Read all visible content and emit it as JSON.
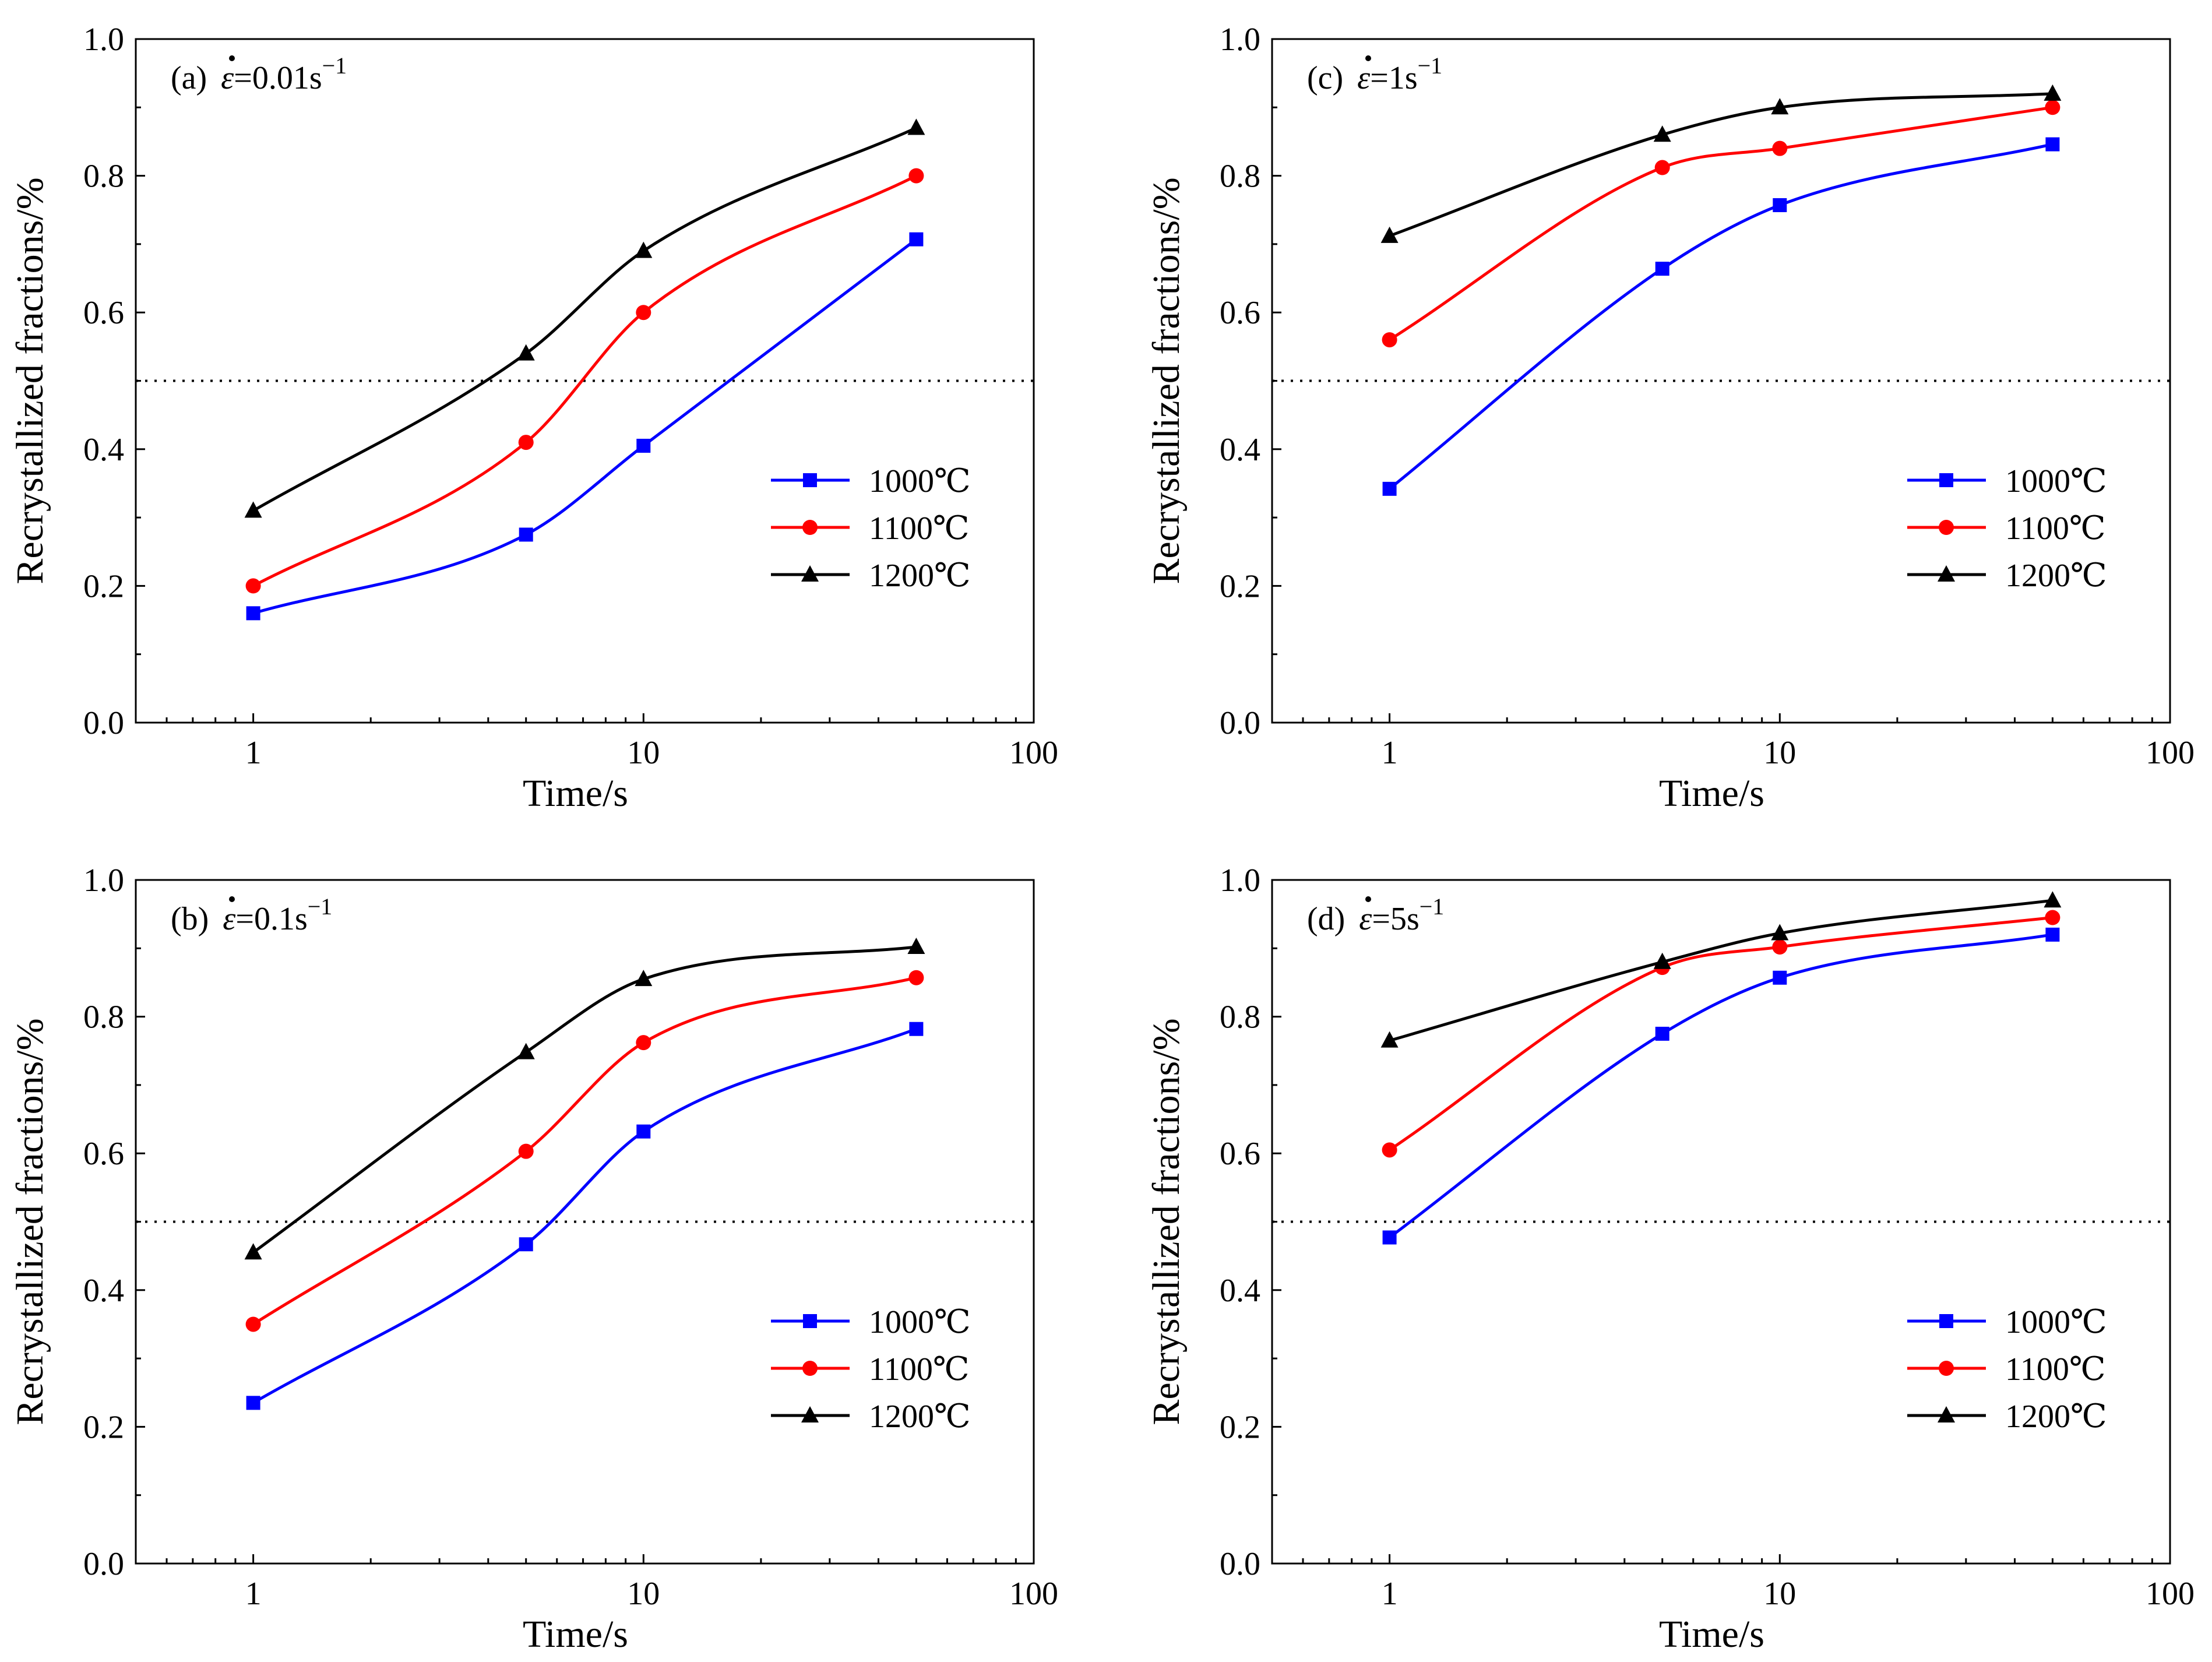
{
  "figure": {
    "description": "Recrystallized fraction vs time at four strain rates"
  },
  "colors": {
    "1000": "#0000ff",
    "1100": "#ff0000",
    "1200": "#000000",
    "axis": "#000000"
  },
  "legend": {
    "entries": [
      {
        "key": "1000",
        "label": "1000℃",
        "marker": "square"
      },
      {
        "key": "1100",
        "label": "1100℃",
        "marker": "circle"
      },
      {
        "key": "1200",
        "label": "1200℃",
        "marker": "triangle"
      }
    ],
    "placement": "center-right"
  },
  "chart_data": [
    {
      "panel": "a",
      "type": "line",
      "title_prefix": "(a) ",
      "rate_symbol": "ε",
      "rate_value": "=0.01s",
      "rate_exponent": "−1",
      "xlabel": "Time/s",
      "ylabel": "Recrystallized fractions/%",
      "xscale": "log",
      "xlim": [
        0.5,
        100
      ],
      "ylim": [
        0.0,
        1.0
      ],
      "xticks": [
        1,
        10,
        100
      ],
      "xtick_labels": [
        "1",
        "10",
        "100"
      ],
      "yticks": [
        0.0,
        0.2,
        0.4,
        0.6,
        0.8,
        1.0
      ],
      "ytick_labels": [
        "0.0",
        "0.2",
        "0.4",
        "0.6",
        "0.8",
        "1.0"
      ],
      "reference_line": 0.5,
      "x": [
        1,
        5,
        10,
        50
      ],
      "series": [
        {
          "name": "1000℃",
          "key": "1000",
          "marker": "square",
          "values": [
            0.16,
            0.275,
            0.405,
            0.707
          ]
        },
        {
          "name": "1100℃",
          "key": "1100",
          "marker": "circle",
          "values": [
            0.2,
            0.41,
            0.6,
            0.8
          ]
        },
        {
          "name": "1200℃",
          "key": "1200",
          "marker": "triangle",
          "values": [
            0.31,
            0.54,
            0.69,
            0.87
          ]
        }
      ]
    },
    {
      "panel": "b",
      "type": "line",
      "title_prefix": "(b) ",
      "rate_symbol": "ε",
      "rate_value": "=0.1s",
      "rate_exponent": "−1",
      "xlabel": "Time/s",
      "ylabel": "Recrystallized fractions/%",
      "xscale": "log",
      "xlim": [
        0.5,
        100
      ],
      "ylim": [
        0.0,
        1.0
      ],
      "xticks": [
        1,
        10,
        100
      ],
      "xtick_labels": [
        "1",
        "10",
        "100"
      ],
      "yticks": [
        0.0,
        0.2,
        0.4,
        0.6,
        0.8,
        1.0
      ],
      "ytick_labels": [
        "0.0",
        "0.2",
        "0.4",
        "0.6",
        "0.8",
        "1.0"
      ],
      "reference_line": 0.5,
      "x": [
        1,
        5,
        10,
        50
      ],
      "series": [
        {
          "name": "1000℃",
          "key": "1000",
          "marker": "square",
          "values": [
            0.235,
            0.467,
            0.632,
            0.782
          ]
        },
        {
          "name": "1100℃",
          "key": "1100",
          "marker": "circle",
          "values": [
            0.35,
            0.603,
            0.762,
            0.857
          ]
        },
        {
          "name": "1200℃",
          "key": "1200",
          "marker": "triangle",
          "values": [
            0.455,
            0.748,
            0.855,
            0.902
          ]
        }
      ]
    },
    {
      "panel": "c",
      "type": "line",
      "title_prefix": "(c) ",
      "rate_symbol": "ε",
      "rate_value": "=1s",
      "rate_exponent": "−1",
      "xlabel": "Time/s",
      "ylabel": "Recrystallized fractions/%",
      "xscale": "log",
      "xlim": [
        0.5,
        100
      ],
      "ylim": [
        0.0,
        1.0
      ],
      "xticks": [
        1,
        10,
        100
      ],
      "xtick_labels": [
        "1",
        "10",
        "100"
      ],
      "yticks": [
        0.0,
        0.2,
        0.4,
        0.6,
        0.8,
        1.0
      ],
      "ytick_labels": [
        "0.0",
        "0.2",
        "0.4",
        "0.6",
        "0.8",
        "1.0"
      ],
      "reference_line": 0.5,
      "x": [
        1,
        5,
        10,
        50
      ],
      "series": [
        {
          "name": "1000℃",
          "key": "1000",
          "marker": "square",
          "values": [
            0.342,
            0.664,
            0.757,
            0.846
          ]
        },
        {
          "name": "1100℃",
          "key": "1100",
          "marker": "circle",
          "values": [
            0.56,
            0.812,
            0.84,
            0.9
          ]
        },
        {
          "name": "1200℃",
          "key": "1200",
          "marker": "triangle",
          "values": [
            0.712,
            0.86,
            0.9,
            0.92
          ]
        }
      ]
    },
    {
      "panel": "d",
      "type": "line",
      "title_prefix": "(d) ",
      "rate_symbol": "ε",
      "rate_value": "=5s",
      "rate_exponent": "−1",
      "xlabel": "Time/s",
      "ylabel": "Recrystallized fractions/%",
      "xscale": "log",
      "xlim": [
        0.5,
        100
      ],
      "ylim": [
        0.0,
        1.0
      ],
      "xticks": [
        1,
        10,
        100
      ],
      "xtick_labels": [
        "1",
        "10",
        "100"
      ],
      "yticks": [
        0.0,
        0.2,
        0.4,
        0.6,
        0.8,
        1.0
      ],
      "ytick_labels": [
        "0.0",
        "0.2",
        "0.4",
        "0.6",
        "0.8",
        "1.0"
      ],
      "reference_line": 0.5,
      "x": [
        1,
        5,
        10,
        50
      ],
      "series": [
        {
          "name": "1000℃",
          "key": "1000",
          "marker": "square",
          "values": [
            0.477,
            0.775,
            0.857,
            0.92
          ]
        },
        {
          "name": "1100℃",
          "key": "1100",
          "marker": "circle",
          "values": [
            0.605,
            0.872,
            0.902,
            0.945
          ]
        },
        {
          "name": "1200℃",
          "key": "1200",
          "marker": "triangle",
          "values": [
            0.765,
            0.88,
            0.922,
            0.97
          ]
        }
      ]
    }
  ]
}
